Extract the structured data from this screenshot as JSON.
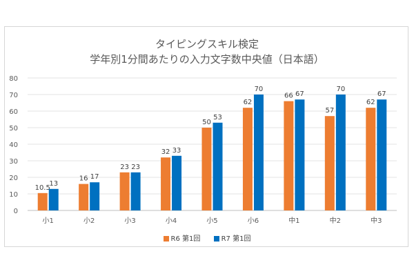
{
  "chart_data": {
    "type": "bar",
    "title_line1": "タイピングスキル検定",
    "title_line2": "学年別1分間あたりの入力文字数中央値（日本語）",
    "categories": [
      "小1",
      "小2",
      "小3",
      "小4",
      "小5",
      "小6",
      "中1",
      "中2",
      "中3"
    ],
    "series": [
      {
        "name": "R6 第1回",
        "color": "#ed7d31",
        "values": [
          10.5,
          16,
          23,
          32,
          50,
          62,
          66,
          57,
          62
        ],
        "labels": [
          "10.5",
          "16",
          "23",
          "32",
          "50",
          "62",
          "66",
          "57",
          "62"
        ]
      },
      {
        "name": "R7 第1回",
        "color": "#0070c0",
        "values": [
          13,
          17,
          23,
          33,
          53,
          70,
          67,
          70,
          67
        ],
        "labels": [
          "13",
          "17",
          "23",
          "33",
          "53",
          "70",
          "67",
          "70",
          "67"
        ]
      }
    ],
    "yticks": [
      "0",
      "10",
      "20",
      "30",
      "40",
      "50",
      "60",
      "70",
      "80"
    ],
    "ylim": [
      0,
      80
    ],
    "grid": true,
    "legend_position": "bottom",
    "xlabel": "",
    "ylabel": ""
  },
  "legend": {
    "r6_label": "R6  第1回",
    "r7_label": "R7   第1回"
  }
}
